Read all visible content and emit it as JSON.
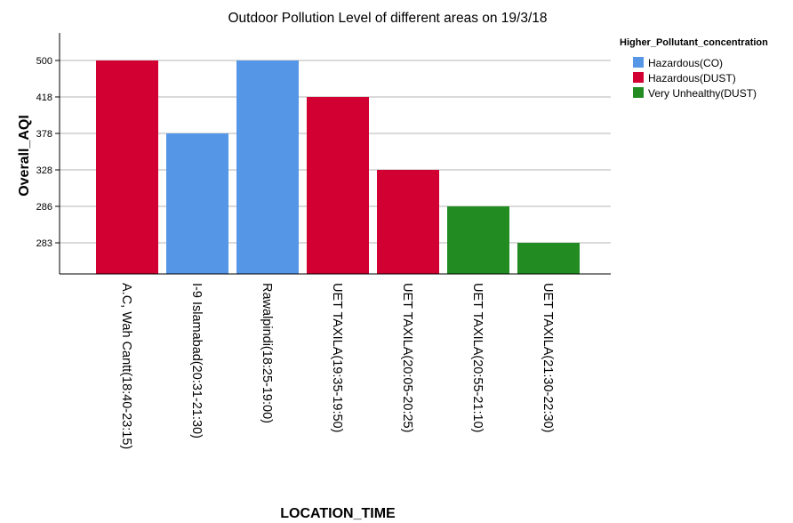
{
  "chart_data": {
    "type": "bar",
    "title": "Outdoor Pollution Level of different areas on 19/3/18",
    "xlabel": "LOCATION_TIME",
    "ylabel": "Overall_AQI",
    "y_ticks": [
      "500",
      "418",
      "378",
      "328",
      "286",
      "283"
    ],
    "categories": [
      "A.C, Wah Cantt(18:40-23:15)",
      "I-9 Islamabad(20:31-21:30)",
      "Rawalpindi(18:25-19:00)",
      "UET TAXILA(19:35-19:50)",
      "UET TAXILA(20:05-20:25)",
      "UET TAXILA(20:55-21:10)",
      "UET TAXILA(21:30-22:30)"
    ],
    "values": [
      500,
      378,
      500,
      418,
      328,
      286,
      283
    ],
    "groups": [
      "Hazardous(DUST)",
      "Hazardous(CO)",
      "Hazardous(CO)",
      "Hazardous(DUST)",
      "Hazardous(DUST)",
      "Very Unhealthy(DUST)",
      "Very Unhealthy(DUST)"
    ],
    "legend": {
      "title": "Higher_Pollutant_concentration",
      "position": "top-right",
      "items": [
        {
          "label": "Hazardous(CO)",
          "color": "#5596e6"
        },
        {
          "label": "Hazardous(DUST)",
          "color": "#d20032"
        },
        {
          "label": "Very Unhealthy(DUST)",
          "color": "#228b22"
        }
      ]
    },
    "y_scale": "categorical-rank (equally spaced ticks)",
    "grid": true
  }
}
